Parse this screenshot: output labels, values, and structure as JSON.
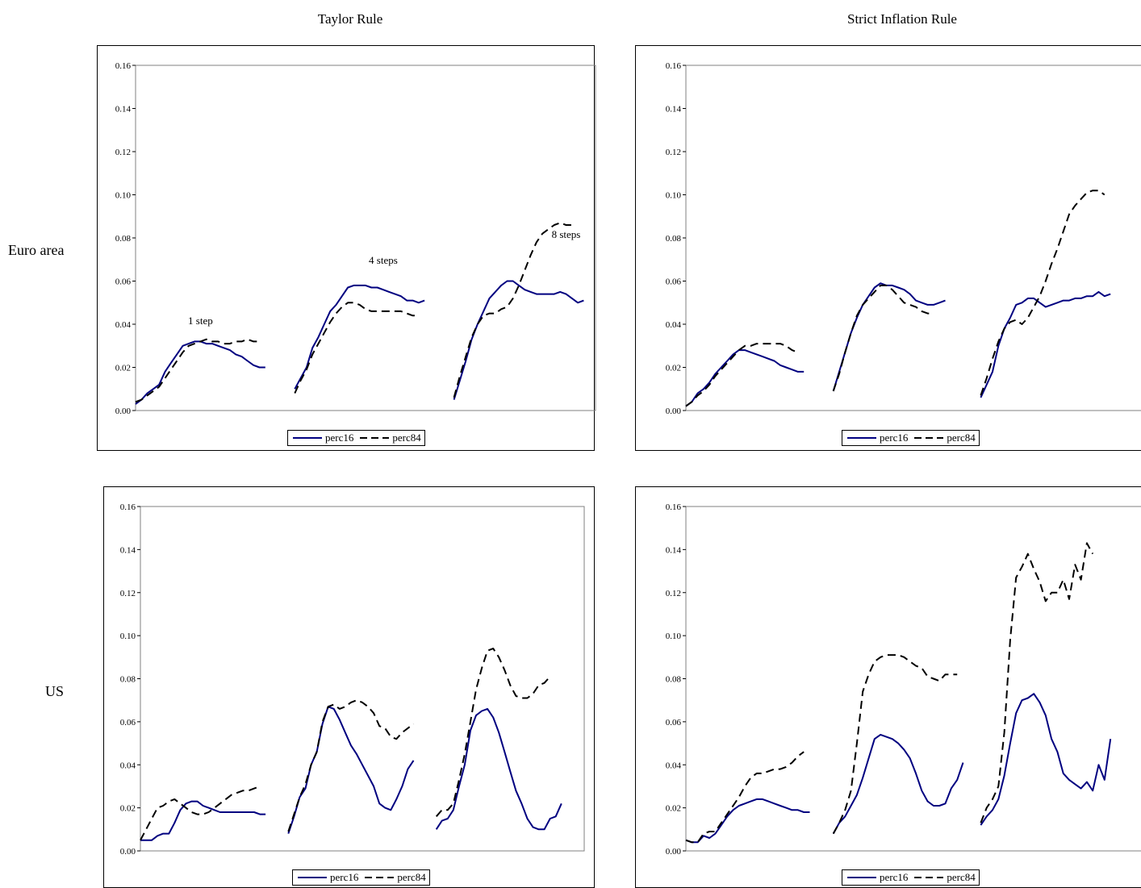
{
  "columns": [
    "Taylor Rule",
    "Strict Inflation Rule"
  ],
  "rows": [
    "Euro area",
    "US"
  ],
  "chart_data": [
    {
      "type": "line",
      "column": "Taylor Rule",
      "row": "Euro area",
      "ylim": [
        0,
        0.16
      ],
      "yticks": [
        "0.00",
        "0.02",
        "0.04",
        "0.06",
        "0.08",
        "0.10",
        "0.12",
        "0.14",
        "0.16"
      ],
      "legend": [
        "perc16",
        "perc84"
      ],
      "annotations": [
        {
          "text": "1 step",
          "x": 11,
          "y": 0.04
        },
        {
          "text": "4 steps",
          "x": 42,
          "y": 0.068
        },
        {
          "text": "8 steps",
          "x": 73,
          "y": 0.08
        }
      ],
      "segments": [
        {
          "label": "1 step",
          "x_start": 0,
          "perc16": [
            0.003,
            0.005,
            0.008,
            0.01,
            0.012,
            0.018,
            0.022,
            0.026,
            0.03,
            0.031,
            0.032,
            0.032,
            0.031,
            0.031,
            0.03,
            0.029,
            0.028,
            0.026,
            0.025,
            0.023,
            0.021,
            0.02,
            0.02
          ],
          "perc84": [
            0.004,
            0.005,
            0.007,
            0.009,
            0.011,
            0.015,
            0.019,
            0.023,
            0.027,
            0.03,
            0.031,
            0.032,
            0.033,
            0.032,
            0.032,
            0.031,
            0.031,
            0.032,
            0.032,
            0.033,
            0.032,
            0.032
          ]
        },
        {
          "label": "4 steps",
          "x_start": 27,
          "perc16": [
            0.01,
            0.015,
            0.02,
            0.029,
            0.034,
            0.04,
            0.046,
            0.049,
            0.053,
            0.057,
            0.058,
            0.058,
            0.058,
            0.057,
            0.057,
            0.056,
            0.055,
            0.054,
            0.053,
            0.051,
            0.051,
            0.05,
            0.051
          ],
          "perc84": [
            0.008,
            0.014,
            0.019,
            0.026,
            0.031,
            0.036,
            0.041,
            0.045,
            0.048,
            0.05,
            0.05,
            0.049,
            0.047,
            0.046,
            0.046,
            0.046,
            0.046,
            0.046,
            0.046,
            0.045,
            0.044,
            0.044
          ]
        },
        {
          "label": "8 steps",
          "x_start": 54,
          "perc16": [
            0.005,
            0.014,
            0.023,
            0.033,
            0.04,
            0.046,
            0.052,
            0.055,
            0.058,
            0.06,
            0.06,
            0.058,
            0.056,
            0.055,
            0.054,
            0.054,
            0.054,
            0.054,
            0.055,
            0.054,
            0.052,
            0.05,
            0.051
          ],
          "perc84": [
            0.006,
            0.016,
            0.025,
            0.034,
            0.04,
            0.044,
            0.045,
            0.045,
            0.047,
            0.048,
            0.052,
            0.058,
            0.065,
            0.072,
            0.078,
            0.082,
            0.084,
            0.086,
            0.087,
            0.086,
            0.086
          ]
        }
      ]
    },
    {
      "type": "line",
      "column": "Strict Inflation Rule",
      "row": "Euro area",
      "ylim": [
        0,
        0.16
      ],
      "yticks": [
        "0.00",
        "0.02",
        "0.04",
        "0.06",
        "0.08",
        "0.10",
        "0.12",
        "0.14",
        "0.16"
      ],
      "legend": [
        "perc16",
        "perc84"
      ],
      "annotations": [],
      "segments": [
        {
          "label": "1 step",
          "x_start": 0,
          "perc16": [
            0.002,
            0.004,
            0.008,
            0.01,
            0.013,
            0.017,
            0.02,
            0.023,
            0.026,
            0.028,
            0.028,
            0.027,
            0.026,
            0.025,
            0.024,
            0.023,
            0.021,
            0.02,
            0.019,
            0.018,
            0.018
          ],
          "perc84": [
            0.002,
            0.004,
            0.007,
            0.009,
            0.012,
            0.016,
            0.019,
            0.022,
            0.025,
            0.028,
            0.03,
            0.03,
            0.031,
            0.031,
            0.031,
            0.031,
            0.031,
            0.03,
            0.028,
            0.027
          ]
        },
        {
          "label": "4 steps",
          "x_start": 25,
          "perc16": [
            0.009,
            0.018,
            0.027,
            0.036,
            0.043,
            0.049,
            0.053,
            0.057,
            0.059,
            0.058,
            0.058,
            0.057,
            0.056,
            0.054,
            0.051,
            0.05,
            0.049,
            0.049,
            0.05,
            0.051
          ],
          "perc84": [
            0.009,
            0.017,
            0.027,
            0.036,
            0.044,
            0.049,
            0.052,
            0.055,
            0.058,
            0.058,
            0.056,
            0.053,
            0.05,
            0.049,
            0.048,
            0.046,
            0.045,
            0.045
          ]
        },
        {
          "label": "8 steps",
          "x_start": 50,
          "perc16": [
            0.006,
            0.012,
            0.018,
            0.03,
            0.038,
            0.043,
            0.049,
            0.05,
            0.052,
            0.052,
            0.05,
            0.048,
            0.049,
            0.05,
            0.051,
            0.051,
            0.052,
            0.052,
            0.053,
            0.053,
            0.055,
            0.053,
            0.054
          ],
          "perc84": [
            0.007,
            0.015,
            0.024,
            0.032,
            0.038,
            0.041,
            0.042,
            0.04,
            0.043,
            0.048,
            0.053,
            0.06,
            0.068,
            0.075,
            0.083,
            0.091,
            0.095,
            0.098,
            0.101,
            0.102,
            0.102,
            0.1
          ]
        }
      ]
    },
    {
      "type": "line",
      "column": "Taylor Rule",
      "row": "US",
      "ylim": [
        0,
        0.16
      ],
      "yticks": [
        "0.00",
        "0.02",
        "0.04",
        "0.06",
        "0.08",
        "0.10",
        "0.12",
        "0.14",
        "0.16"
      ],
      "legend": [
        "perc16",
        "perc84"
      ],
      "annotations": [],
      "segments": [
        {
          "label": "1 step",
          "x_start": 0,
          "perc16": [
            0.005,
            0.005,
            0.005,
            0.007,
            0.008,
            0.008,
            0.013,
            0.019,
            0.022,
            0.023,
            0.023,
            0.021,
            0.02,
            0.019,
            0.018,
            0.018,
            0.018,
            0.018,
            0.018,
            0.018,
            0.018,
            0.017,
            0.017
          ],
          "perc84": [
            0.005,
            0.01,
            0.015,
            0.02,
            0.021,
            0.023,
            0.024,
            0.022,
            0.02,
            0.018,
            0.017,
            0.017,
            0.018,
            0.02,
            0.022,
            0.024,
            0.026,
            0.027,
            0.028,
            0.028,
            0.029,
            0.03
          ]
        },
        {
          "label": "4 steps",
          "x_start": 26,
          "perc16": [
            0.008,
            0.016,
            0.025,
            0.029,
            0.04,
            0.046,
            0.059,
            0.067,
            0.066,
            0.061,
            0.055,
            0.049,
            0.045,
            0.04,
            0.035,
            0.03,
            0.022,
            0.02,
            0.019,
            0.024,
            0.03,
            0.038,
            0.042
          ],
          "perc84": [
            0.009,
            0.017,
            0.025,
            0.031,
            0.04,
            0.046,
            0.06,
            0.067,
            0.068,
            0.066,
            0.067,
            0.069,
            0.07,
            0.069,
            0.067,
            0.064,
            0.058,
            0.057,
            0.053,
            0.052,
            0.055,
            0.057,
            0.059
          ]
        },
        {
          "label": "8 steps",
          "x_start": 52,
          "perc16": [
            0.01,
            0.014,
            0.015,
            0.019,
            0.03,
            0.04,
            0.056,
            0.063,
            0.065,
            0.066,
            0.062,
            0.055,
            0.046,
            0.037,
            0.028,
            0.022,
            0.015,
            0.011,
            0.01,
            0.01,
            0.015,
            0.016,
            0.022
          ],
          "perc84": [
            0.016,
            0.019,
            0.019,
            0.022,
            0.033,
            0.045,
            0.06,
            0.075,
            0.085,
            0.093,
            0.094,
            0.09,
            0.084,
            0.077,
            0.072,
            0.071,
            0.071,
            0.073,
            0.077,
            0.078,
            0.081
          ]
        }
      ]
    },
    {
      "type": "line",
      "column": "Strict Inflation Rule",
      "row": "US",
      "ylim": [
        0,
        0.16
      ],
      "yticks": [
        "0.00",
        "0.02",
        "0.04",
        "0.06",
        "0.08",
        "0.10",
        "0.12",
        "0.14",
        "0.16"
      ],
      "legend": [
        "perc16",
        "perc84"
      ],
      "annotations": [],
      "segments": [
        {
          "label": "1 step",
          "x_start": 0,
          "perc16": [
            0.005,
            0.004,
            0.004,
            0.007,
            0.006,
            0.008,
            0.012,
            0.016,
            0.019,
            0.021,
            0.022,
            0.023,
            0.024,
            0.024,
            0.023,
            0.022,
            0.021,
            0.02,
            0.019,
            0.019,
            0.018,
            0.018
          ],
          "perc84": [
            0.005,
            0.004,
            0.004,
            0.008,
            0.009,
            0.009,
            0.013,
            0.017,
            0.021,
            0.025,
            0.03,
            0.034,
            0.036,
            0.036,
            0.037,
            0.038,
            0.038,
            0.039,
            0.041,
            0.044,
            0.046
          ]
        },
        {
          "label": "4 steps",
          "x_start": 25,
          "perc16": [
            0.008,
            0.013,
            0.016,
            0.021,
            0.026,
            0.034,
            0.043,
            0.052,
            0.054,
            0.053,
            0.052,
            0.05,
            0.047,
            0.043,
            0.036,
            0.028,
            0.023,
            0.021,
            0.021,
            0.022,
            0.029,
            0.033,
            0.041
          ],
          "perc84": [
            0.008,
            0.013,
            0.019,
            0.028,
            0.05,
            0.074,
            0.082,
            0.088,
            0.09,
            0.091,
            0.091,
            0.091,
            0.09,
            0.088,
            0.086,
            0.085,
            0.081,
            0.08,
            0.079,
            0.082,
            0.082,
            0.082
          ]
        },
        {
          "label": "8 steps",
          "x_start": 50,
          "perc16": [
            0.012,
            0.016,
            0.019,
            0.024,
            0.035,
            0.05,
            0.064,
            0.07,
            0.071,
            0.073,
            0.069,
            0.063,
            0.052,
            0.046,
            0.036,
            0.033,
            0.031,
            0.029,
            0.032,
            0.028,
            0.04,
            0.033,
            0.052
          ],
          "perc84": [
            0.013,
            0.02,
            0.024,
            0.03,
            0.055,
            0.098,
            0.127,
            0.132,
            0.138,
            0.131,
            0.125,
            0.116,
            0.12,
            0.12,
            0.126,
            0.117,
            0.133,
            0.126,
            0.143,
            0.138
          ]
        }
      ]
    }
  ]
}
